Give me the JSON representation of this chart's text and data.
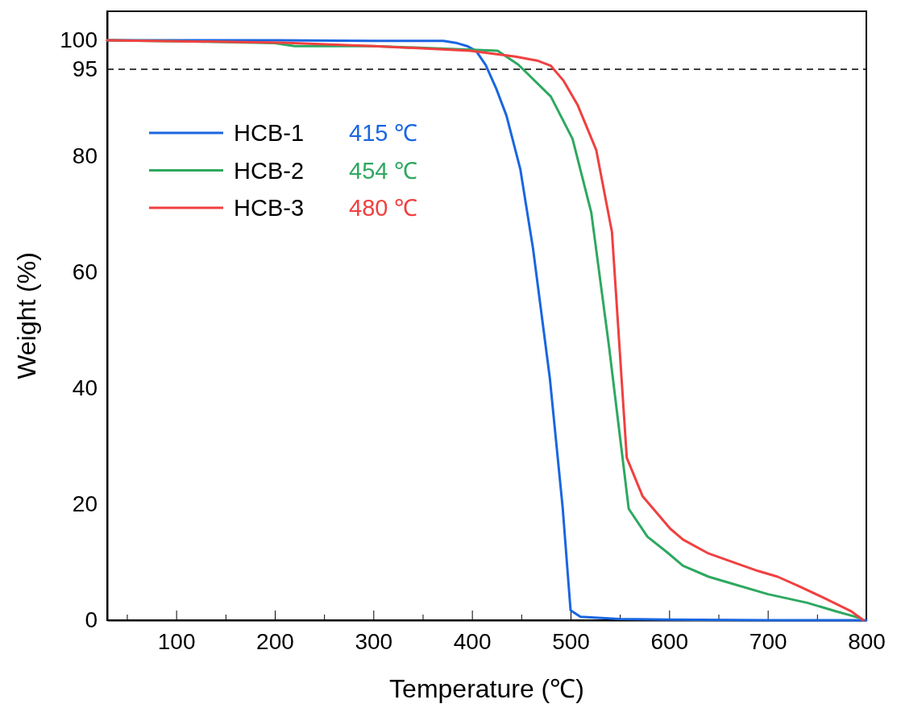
{
  "chart_data": {
    "type": "line",
    "xlabel": "Temperature (℃)",
    "ylabel": "Weight (%)",
    "xlim": [
      30,
      800
    ],
    "ylim": [
      0,
      105
    ],
    "xticks": [
      {
        "value": 50,
        "label": null
      },
      100,
      {
        "value": 150,
        "label": null
      },
      200,
      {
        "value": 250,
        "label": null
      },
      300,
      {
        "value": 350,
        "label": null
      },
      400,
      {
        "value": 450,
        "label": null
      },
      500,
      {
        "value": 550,
        "label": null
      },
      600,
      {
        "value": 650,
        "label": null
      },
      700,
      {
        "value": 750,
        "label": null
      },
      800
    ],
    "yticks": [
      0,
      20,
      40,
      60,
      80,
      95,
      100
    ],
    "series": [
      {
        "name": "HCB-1",
        "color": "#1a66e0",
        "x": [
          30,
          200,
          300,
          371,
          385,
          395,
          404,
          414,
          425,
          435,
          449,
          462,
          479,
          492,
          500,
          510,
          550,
          600,
          700,
          800
        ],
        "values": [
          100,
          100,
          99.9,
          99.9,
          99.5,
          99,
          98.2,
          95.7,
          91.5,
          87,
          77.8,
          64,
          41.7,
          19.4,
          1.7,
          0.6,
          0.2,
          0.1,
          0,
          0
        ]
      },
      {
        "name": "HCB-2",
        "color": "#2ea860",
        "x": [
          30,
          150,
          200,
          220,
          300,
          426,
          447,
          480,
          502,
          521,
          539,
          559,
          578,
          598,
          614,
          640,
          660,
          700,
          740,
          770,
          795
        ],
        "values": [
          100,
          99.7,
          99.5,
          99,
          99,
          98.2,
          95.8,
          90.3,
          83,
          70.3,
          47.2,
          19.2,
          14.4,
          11.7,
          9.4,
          7.5,
          6.5,
          4.5,
          3,
          1.5,
          0.3
        ]
      },
      {
        "name": "HCB-3",
        "color": "#f04040",
        "x": [
          30,
          208,
          300,
          398,
          444,
          466,
          480,
          493,
          507,
          526,
          542,
          557,
          573,
          601,
          614,
          640,
          660,
          690,
          710,
          730,
          755,
          785,
          797
        ],
        "values": [
          100,
          99.6,
          99,
          98.2,
          97.2,
          96.5,
          95.6,
          93,
          88.9,
          81.1,
          66.9,
          28,
          21.4,
          15.8,
          13.9,
          11.5,
          10.3,
          8.5,
          7.5,
          6,
          4,
          1.5,
          0
        ]
      }
    ],
    "annotations": [
      "415 ℃",
      "454 ℃",
      "480 ℃"
    ],
    "ref_lines": [
      {
        "axis": "y",
        "value": 95,
        "color": "#000000",
        "line_style": "dashed"
      }
    ],
    "legend": "top left",
    "line_style": "solid",
    "marker": "none",
    "grid": false
  }
}
